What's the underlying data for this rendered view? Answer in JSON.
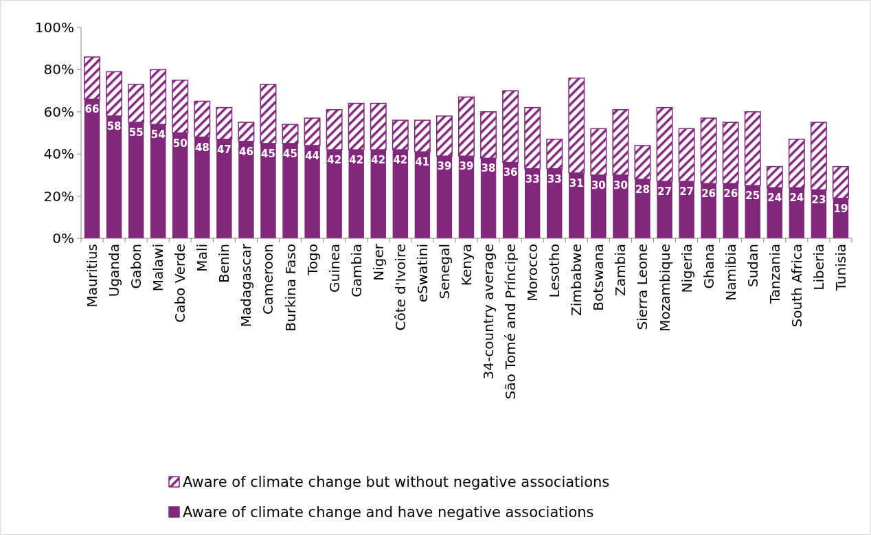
{
  "chart_data": {
    "type": "bar",
    "stacked": true,
    "categories": [
      "Mauritius",
      "Uganda",
      "Gabon",
      "Malawi",
      "Cabo Verde",
      "Mali",
      "Benin",
      "Madagascar",
      "Cameroon",
      "Burkina Faso",
      "Togo",
      "Guinea",
      "Gambia",
      "Niger",
      "Côte d'Ivoire",
      "eSwatini",
      "Senegal",
      "Kenya",
      "34-country average",
      "São Tomé and Príncipe",
      "Morocco",
      "Lesotho",
      "Zimbabwe",
      "Botswana",
      "Zambia",
      "Sierra Leone",
      "Mozambique",
      "Nigeria",
      "Ghana",
      "Namibia",
      "Sudan",
      "Tanzania",
      "South Africa",
      "Liberia",
      "Tunisia"
    ],
    "series": [
      {
        "name": "Aware of climate change and have negative associations",
        "color": "#82287c",
        "values": [
          66,
          58,
          55,
          54,
          50,
          48,
          47,
          46,
          45,
          45,
          44,
          42,
          42,
          42,
          42,
          41,
          39,
          39,
          38,
          36,
          33,
          33,
          31,
          30,
          30,
          28,
          27,
          27,
          26,
          26,
          25,
          24,
          24,
          23,
          19
        ],
        "value_labels": [
          "66",
          "58",
          "55",
          "54",
          "50",
          "48",
          "47",
          "46",
          "45",
          "45",
          "44",
          "42",
          "42",
          "42",
          "42",
          "41",
          "39",
          "39",
          "38",
          "36",
          "33",
          "33",
          "31",
          "30",
          "30",
          "28",
          "27",
          "27",
          "26",
          "26",
          "25",
          "24",
          "24",
          "23",
          "19"
        ]
      },
      {
        "name": "Aware of climate change but without negative associations",
        "color": "#82287c",
        "values": [
          20,
          21,
          18,
          26,
          25,
          17,
          15,
          9,
          28,
          9,
          13,
          19,
          22,
          22,
          14,
          15,
          19,
          28,
          22,
          34,
          29,
          14,
          45,
          22,
          31,
          16,
          35,
          25,
          31,
          29,
          35,
          10,
          23,
          32,
          15
        ]
      }
    ],
    "ylim": [
      0,
      100
    ],
    "yticks": [
      {
        "value": 0,
        "label": "0%"
      },
      {
        "value": 20,
        "label": "20%"
      },
      {
        "value": 40,
        "label": "40%"
      },
      {
        "value": 60,
        "label": "60%"
      },
      {
        "value": 80,
        "label": "80%"
      },
      {
        "value": 100,
        "label": "100%"
      }
    ],
    "legend": "bottom"
  }
}
